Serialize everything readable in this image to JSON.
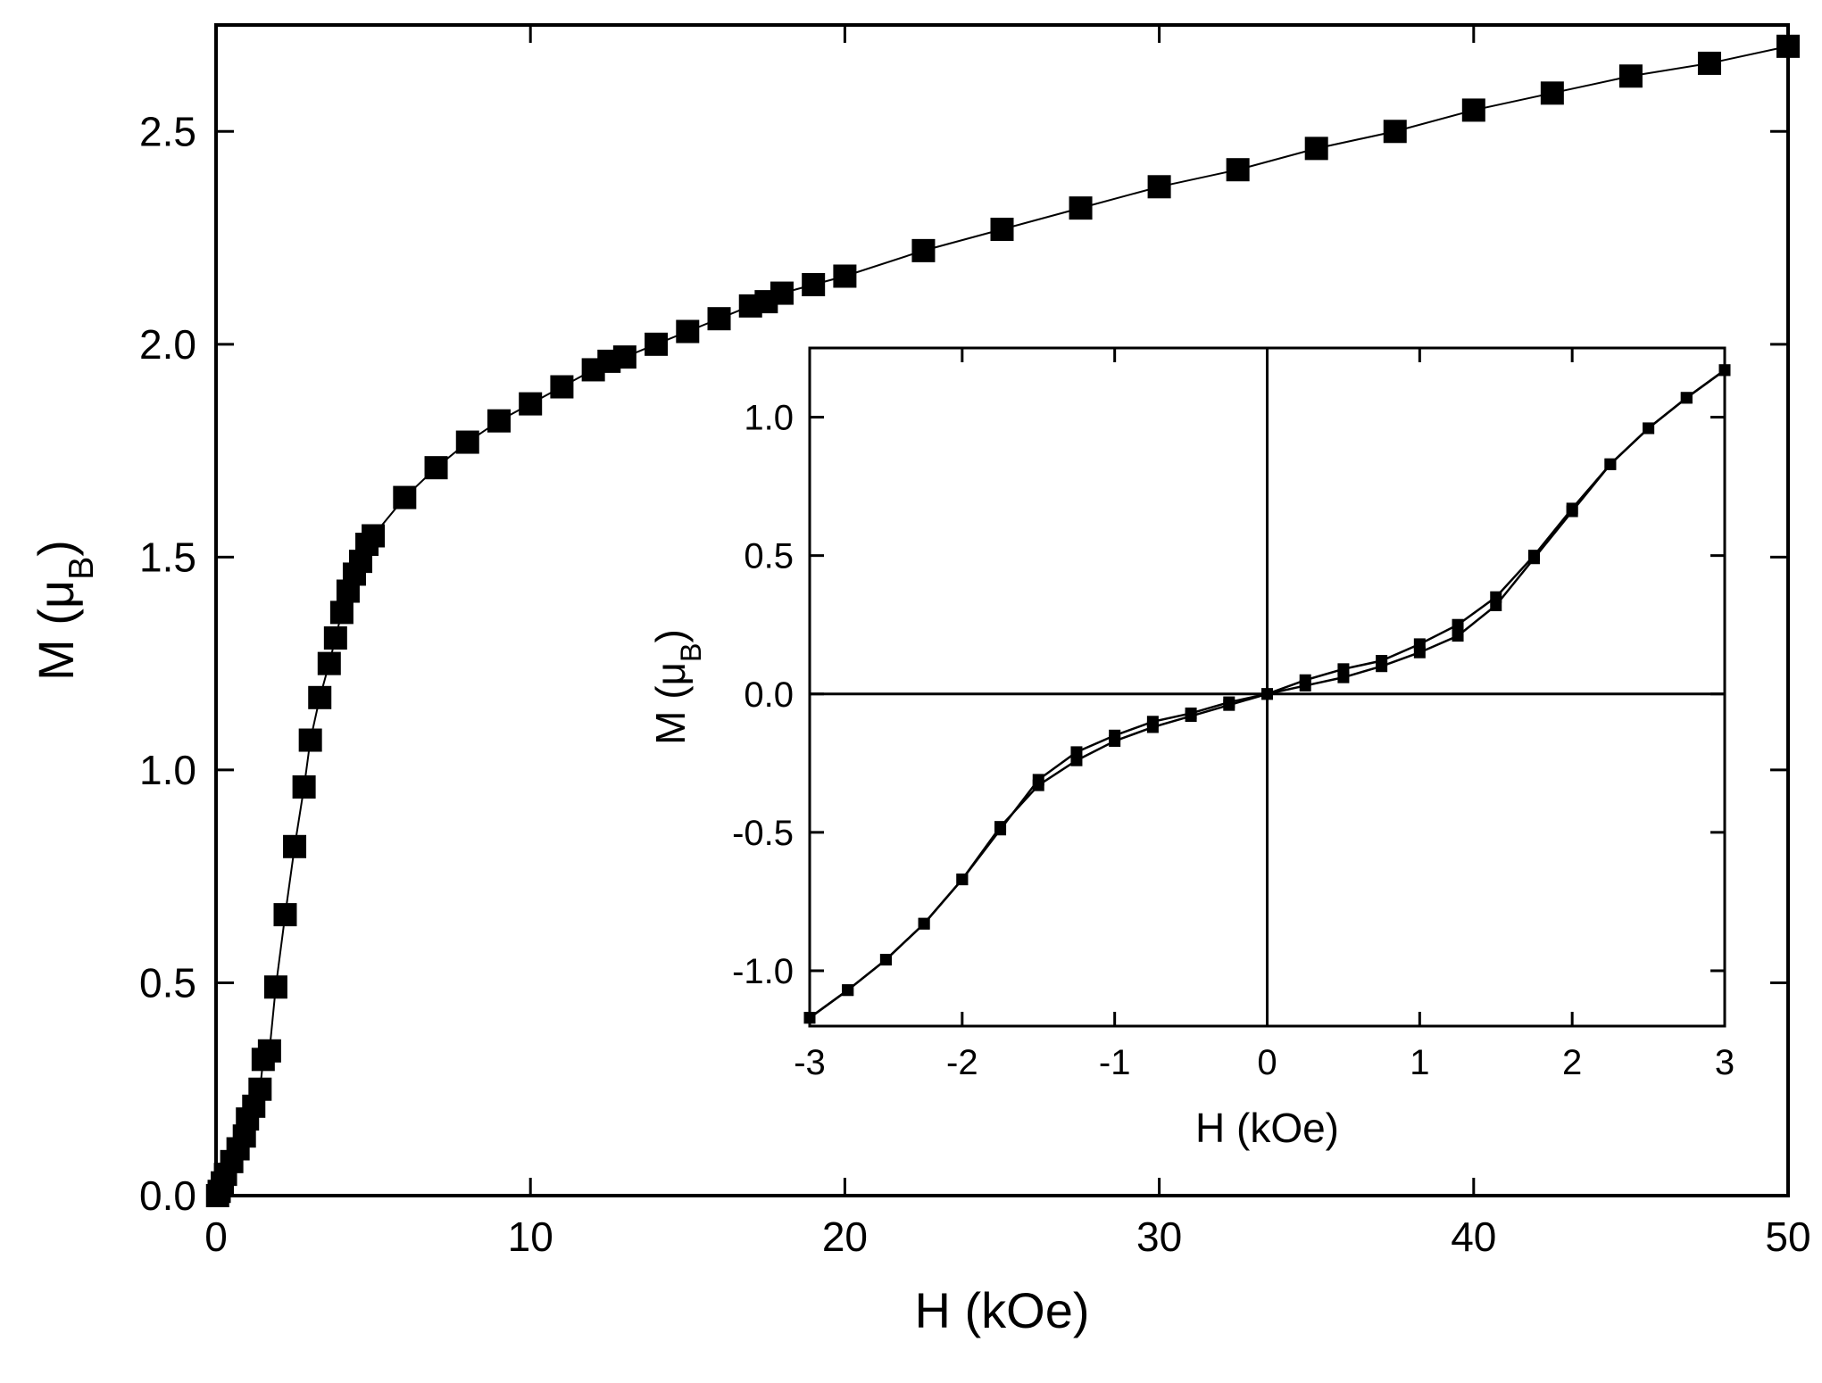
{
  "chart_data": [
    {
      "type": "scatter",
      "role": "main",
      "xlabel": "H (kOe)",
      "ylabel_main": "M (",
      "ylabel_mu": "μ",
      "ylabel_sub": "B",
      "ylabel_close": ")",
      "xlim": [
        0,
        50
      ],
      "ylim": [
        0,
        2.75
      ],
      "xticks": [
        0,
        10,
        20,
        30,
        40,
        50
      ],
      "yticks": [
        0.0,
        0.5,
        1.0,
        1.5,
        2.0,
        2.5
      ],
      "xtick_labels": [
        "0",
        "10",
        "20",
        "30",
        "40",
        "50"
      ],
      "ytick_labels": [
        "0.0",
        "0.5",
        "1.0",
        "1.5",
        "2.0",
        "2.5"
      ],
      "grid": false,
      "marker": "square",
      "series": [
        {
          "x": [
            0.05,
            0.1,
            0.2,
            0.3,
            0.5,
            0.7,
            0.9,
            1.0,
            1.2,
            1.4,
            1.5,
            1.7,
            1.9,
            2.2,
            2.5,
            2.8,
            3.0,
            3.3,
            3.6,
            3.8,
            4.0,
            4.2,
            4.4,
            4.6,
            4.8,
            5.0,
            6.0,
            7.0,
            8.0,
            9.0,
            10.0,
            11.0,
            12.0,
            12.5,
            13.0,
            14.0,
            15.0,
            16.0,
            17.0,
            17.5,
            18.0,
            19.0,
            20.0,
            22.5,
            25.0,
            27.5,
            30.0,
            32.5,
            35.0,
            37.5,
            40.0,
            42.5,
            45.0,
            47.5,
            50.0
          ],
          "y": [
            0.0,
            0.01,
            0.03,
            0.05,
            0.08,
            0.11,
            0.14,
            0.18,
            0.21,
            0.25,
            0.32,
            0.34,
            0.49,
            0.66,
            0.82,
            0.96,
            1.07,
            1.17,
            1.25,
            1.31,
            1.37,
            1.42,
            1.46,
            1.49,
            1.53,
            1.55,
            1.64,
            1.71,
            1.77,
            1.82,
            1.86,
            1.9,
            1.94,
            1.96,
            1.97,
            2.0,
            2.03,
            2.06,
            2.09,
            2.1,
            2.12,
            2.14,
            2.16,
            2.22,
            2.27,
            2.32,
            2.37,
            2.41,
            2.46,
            2.5,
            2.55,
            2.59,
            2.63,
            2.66,
            2.7
          ]
        }
      ]
    },
    {
      "type": "line",
      "role": "inset",
      "xlabel": "H (kOe)",
      "ylabel_main": "M (",
      "ylabel_mu": "μ",
      "ylabel_sub": "B",
      "ylabel_close": ")",
      "xlim": [
        -3,
        3
      ],
      "ylim": [
        -1.2,
        1.25
      ],
      "xticks": [
        -3,
        -2,
        -1,
        0,
        1,
        2,
        3
      ],
      "yticks": [
        -1.0,
        -0.5,
        0.0,
        0.5,
        1.0
      ],
      "xtick_labels": [
        "-3",
        "-2",
        "-1",
        "0",
        "1",
        "2",
        "3"
      ],
      "ytick_labels": [
        "-1.0",
        "-0.5",
        "0.0",
        "0.5",
        "1.0"
      ],
      "zero_lines": true,
      "marker": "square",
      "series": [
        {
          "x": [
            -3.0,
            -2.75,
            -2.5,
            -2.25,
            -2.0,
            -1.75,
            -1.5,
            -1.25,
            -1.0,
            -0.75,
            -0.5,
            -0.25,
            0.0,
            0.25,
            0.5,
            0.75,
            1.0,
            1.25,
            1.5,
            1.75,
            2.0,
            2.25,
            2.5,
            2.75,
            3.0
          ],
          "y": [
            -1.17,
            -1.07,
            -0.96,
            -0.83,
            -0.67,
            -0.49,
            -0.31,
            -0.21,
            -0.15,
            -0.1,
            -0.07,
            -0.03,
            0.0,
            0.05,
            0.09,
            0.12,
            0.18,
            0.25,
            0.35,
            0.5,
            0.67,
            0.83,
            0.96,
            1.07,
            1.17
          ]
        },
        {
          "x": [
            -3.0,
            -2.75,
            -2.5,
            -2.25,
            -2.0,
            -1.75,
            -1.5,
            -1.25,
            -1.0,
            -0.75,
            -0.5,
            -0.25,
            0.0,
            0.25,
            0.5,
            0.75,
            1.0,
            1.25,
            1.5,
            1.75,
            2.0,
            2.25,
            2.5,
            2.75,
            3.0
          ],
          "y": [
            -1.17,
            -1.07,
            -0.96,
            -0.83,
            -0.67,
            -0.48,
            -0.33,
            -0.24,
            -0.17,
            -0.12,
            -0.08,
            -0.04,
            0.0,
            0.03,
            0.06,
            0.1,
            0.15,
            0.21,
            0.32,
            0.49,
            0.66,
            0.83,
            0.96,
            1.07,
            1.17
          ]
        }
      ]
    }
  ]
}
